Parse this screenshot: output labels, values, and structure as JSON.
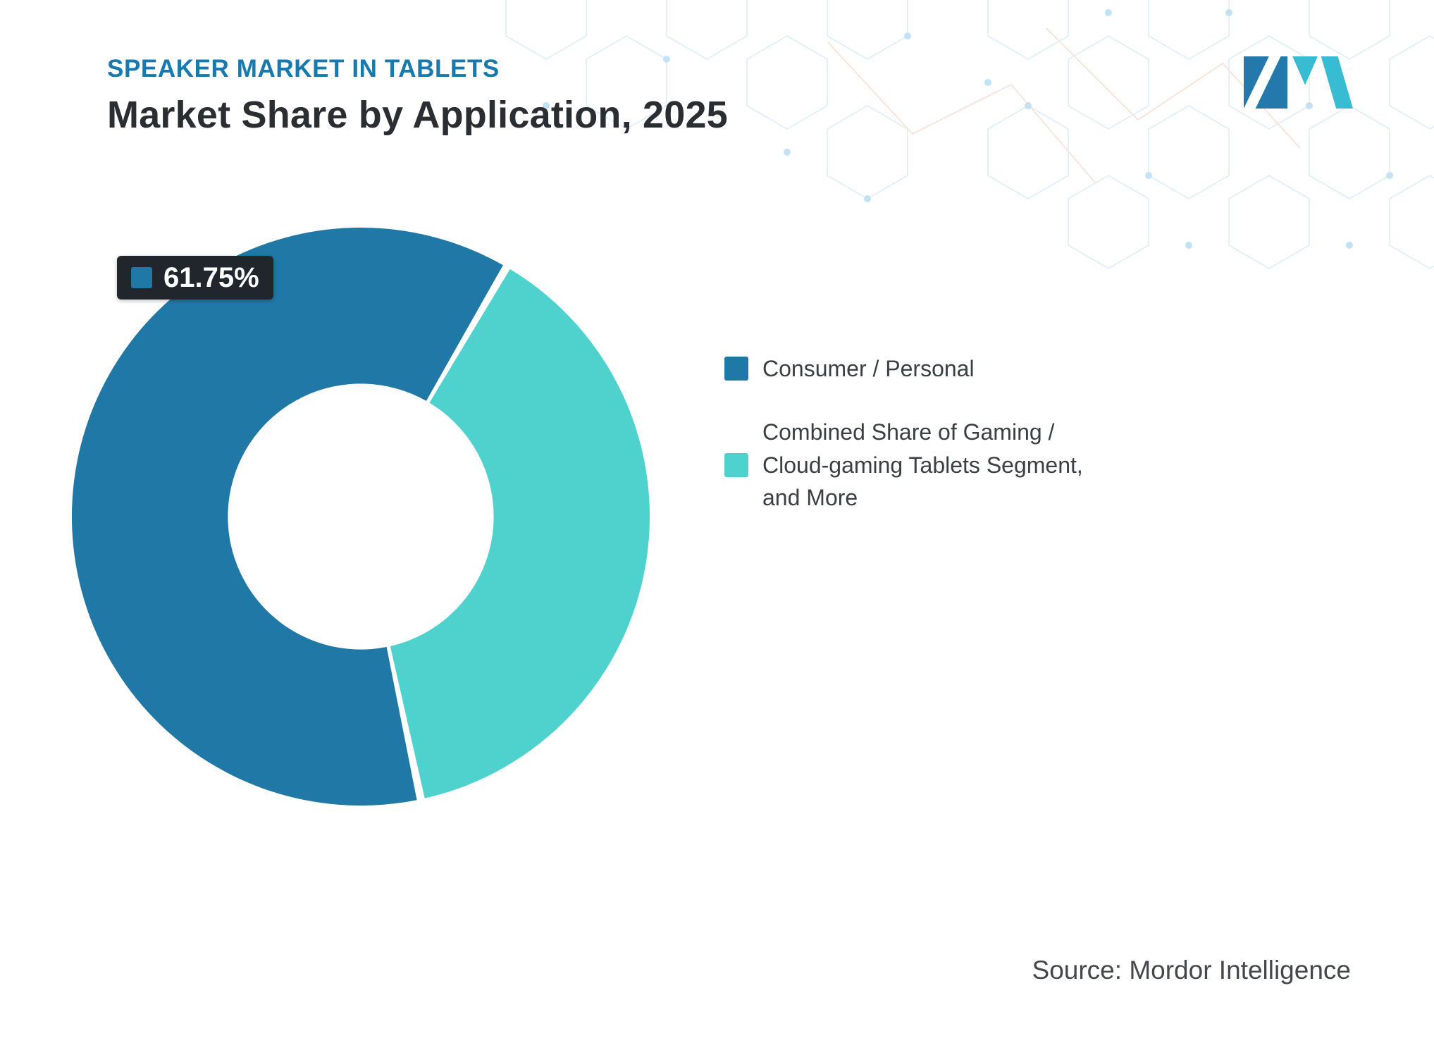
{
  "header": {
    "eyebrow": "SPEAKER MARKET IN TABLETS",
    "title": "Market Share by Application, 2025"
  },
  "chart_data": {
    "type": "pie",
    "donut": true,
    "title": "Market Share by Application, 2025",
    "start_angle_deg": 168,
    "pad_angle_deg": 1.6,
    "inner_radius_ratio": 0.46,
    "legend_position": "right",
    "segments": [
      {
        "label": "Consumer / Personal",
        "value": 61.75,
        "color": "#2078A6"
      },
      {
        "label": "Combined Share of Gaming / Cloud-gaming Tablets Segment, and More",
        "value": 38.25,
        "color": "#4FD2CE"
      }
    ],
    "data_labels": [
      {
        "segment": "Consumer / Personal",
        "text": "61.75%"
      }
    ]
  },
  "callout": {
    "value": "61.75%"
  },
  "legend": {
    "items": [
      {
        "label": "Consumer / Personal",
        "color": "#2078A6"
      },
      {
        "label": "Combined Share of Gaming / Cloud-gaming Tablets Segment, and More",
        "color": "#4FD2CE"
      }
    ]
  },
  "source": {
    "text": "Source: Mordor Intelligence"
  },
  "colors": {
    "background": "#FFFFFF",
    "eyebrow": "#1779AD",
    "title": "#2A2E33",
    "callout_bg": "#20262B",
    "legend_text": "#3A3F44",
    "source_text": "#44484C",
    "logo_blue": "#2379AC",
    "logo_teal": "#38BCD3",
    "hex_pattern": "#D8ECF6"
  }
}
